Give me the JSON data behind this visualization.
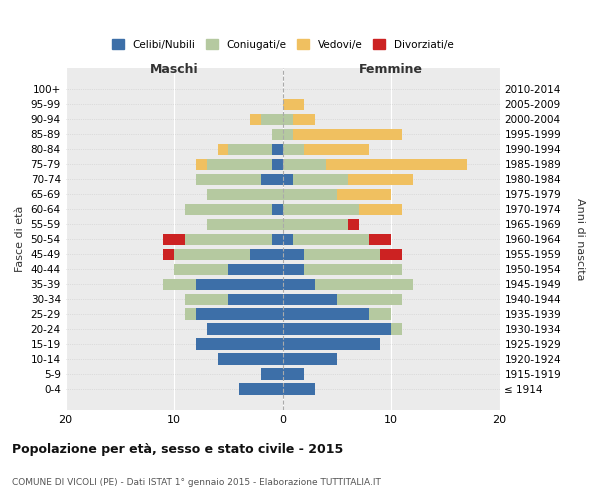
{
  "age_groups": [
    "100+",
    "95-99",
    "90-94",
    "85-89",
    "80-84",
    "75-79",
    "70-74",
    "65-69",
    "60-64",
    "55-59",
    "50-54",
    "45-49",
    "40-44",
    "35-39",
    "30-34",
    "25-29",
    "20-24",
    "15-19",
    "10-14",
    "5-9",
    "0-4"
  ],
  "birth_years": [
    "≤ 1914",
    "1915-1919",
    "1920-1924",
    "1925-1929",
    "1930-1934",
    "1935-1939",
    "1940-1944",
    "1945-1949",
    "1950-1954",
    "1955-1959",
    "1960-1964",
    "1965-1969",
    "1970-1974",
    "1975-1979",
    "1980-1984",
    "1985-1989",
    "1990-1994",
    "1995-1999",
    "2000-2004",
    "2005-2009",
    "2010-2014"
  ],
  "colors": {
    "celibi": "#3d6fa8",
    "coniugati": "#b5c9a0",
    "vedovi": "#f0c060",
    "divorziati": "#cc2222"
  },
  "male": {
    "celibi": [
      0,
      0,
      0,
      0,
      1,
      1,
      2,
      0,
      1,
      0,
      1,
      3,
      5,
      8,
      5,
      8,
      7,
      8,
      6,
      2,
      4
    ],
    "coniugati": [
      0,
      0,
      2,
      1,
      4,
      6,
      6,
      7,
      8,
      7,
      8,
      7,
      5,
      3,
      4,
      1,
      0,
      0,
      0,
      0,
      0
    ],
    "vedovi": [
      0,
      0,
      1,
      0,
      1,
      1,
      0,
      0,
      0,
      0,
      0,
      0,
      0,
      0,
      0,
      0,
      0,
      0,
      0,
      0,
      0
    ],
    "divorziati": [
      0,
      0,
      0,
      0,
      0,
      0,
      0,
      0,
      0,
      0,
      2,
      1,
      0,
      0,
      0,
      0,
      0,
      0,
      0,
      0,
      0
    ]
  },
  "female": {
    "nubili": [
      0,
      0,
      0,
      0,
      0,
      0,
      1,
      0,
      0,
      0,
      1,
      2,
      2,
      3,
      5,
      8,
      10,
      9,
      5,
      2,
      3
    ],
    "coniugate": [
      0,
      0,
      1,
      1,
      2,
      4,
      5,
      5,
      7,
      6,
      7,
      7,
      9,
      9,
      6,
      2,
      1,
      0,
      0,
      0,
      0
    ],
    "vedove": [
      0,
      2,
      2,
      10,
      6,
      13,
      6,
      5,
      4,
      0,
      0,
      0,
      0,
      0,
      0,
      0,
      0,
      0,
      0,
      0,
      0
    ],
    "divorziate": [
      0,
      0,
      0,
      0,
      0,
      0,
      0,
      0,
      0,
      1,
      2,
      2,
      0,
      0,
      0,
      0,
      0,
      0,
      0,
      0,
      0
    ]
  },
  "xlim": 20,
  "title": "Popolazione per età, sesso e stato civile - 2015",
  "subtitle": "COMUNE DI VICOLI (PE) - Dati ISTAT 1° gennaio 2015 - Elaborazione TUTTITALIA.IT",
  "ylabel_left": "Fasce di età",
  "ylabel_right": "Anni di nascita",
  "xlabel_male": "Maschi",
  "xlabel_female": "Femmine",
  "legend_labels": [
    "Celibi/Nubili",
    "Coniugati/e",
    "Vedovi/e",
    "Divorziati/e"
  ],
  "background_color": "#ffffff",
  "plot_bg": "#ebebeb"
}
